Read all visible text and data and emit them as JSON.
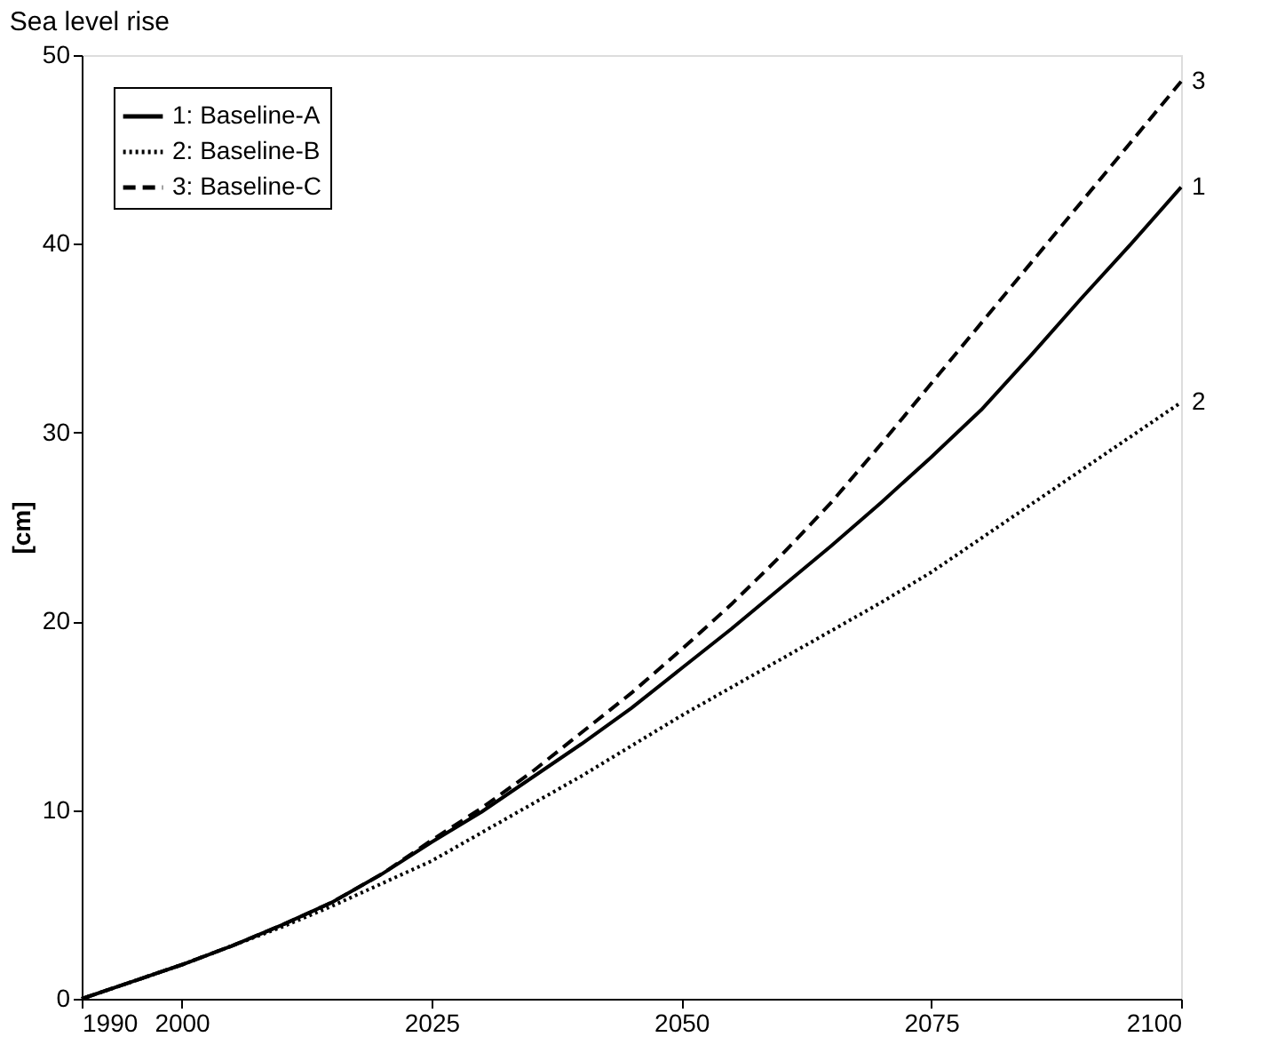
{
  "chart_data": {
    "type": "line",
    "title": "Sea level rise",
    "ylabel": "[cm]",
    "x": [
      1990,
      1995,
      2000,
      2005,
      2010,
      2015,
      2020,
      2025,
      2030,
      2035,
      2040,
      2045,
      2050,
      2055,
      2060,
      2065,
      2070,
      2075,
      2080,
      2085,
      2090,
      2095,
      2100
    ],
    "series": [
      {
        "name": "1: Baseline-A",
        "color": "#000000",
        "line_style": "solid",
        "values": [
          0,
          0.9,
          1.8,
          2.8,
          3.9,
          5.1,
          6.6,
          8.3,
          9.9,
          11.7,
          13.5,
          15.4,
          17.5,
          19.6,
          21.8,
          24.0,
          26.3,
          28.7,
          31.2,
          34.1,
          37.1,
          40.0,
          43.0
        ]
      },
      {
        "name": "2: Baseline-B",
        "color": "#000000",
        "line_style": "dotted",
        "values": [
          0,
          0.9,
          1.8,
          2.8,
          3.8,
          4.9,
          6.1,
          7.3,
          8.8,
          10.3,
          11.8,
          13.4,
          15.0,
          16.5,
          18.0,
          19.5,
          21.0,
          22.6,
          24.4,
          26.2,
          28.0,
          29.8,
          31.6
        ]
      },
      {
        "name": "3: Baseline-C",
        "color": "#000000",
        "line_style": "dashed",
        "values": [
          0,
          0.9,
          1.8,
          2.8,
          3.9,
          5.1,
          6.6,
          8.4,
          10.1,
          12.0,
          14.1,
          16.2,
          18.5,
          20.9,
          23.5,
          26.3,
          29.4,
          32.6,
          35.8,
          39.0,
          42.2,
          45.4,
          48.6
        ]
      }
    ],
    "xlim": [
      1990,
      2100
    ],
    "xticks": [
      1990,
      2000,
      2025,
      2050,
      2075,
      2100
    ],
    "ylim": [
      0,
      50
    ],
    "yticks": [
      0,
      10,
      20,
      30,
      40,
      50
    ],
    "grid": false,
    "legend": "top left",
    "marker": "none",
    "annotations": [
      "1",
      "2",
      "3"
    ]
  }
}
